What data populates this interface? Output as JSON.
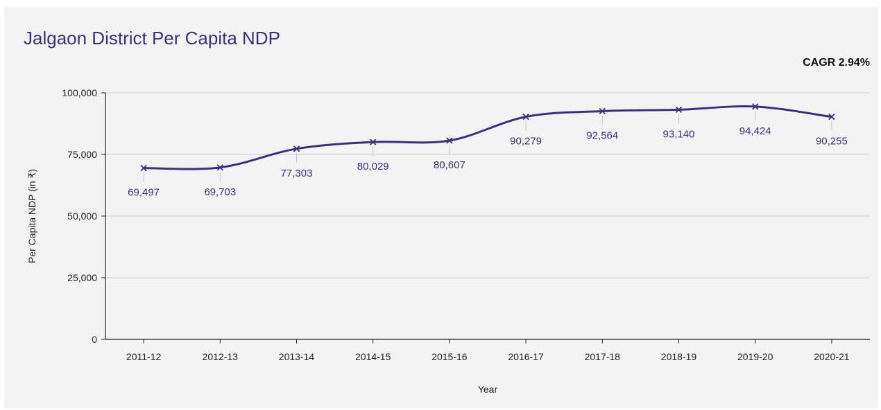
{
  "header": {
    "title": "Jalgaon District Per Capita NDP",
    "cagr": "CAGR 2.94%"
  },
  "chart_data": {
    "type": "line",
    "title": "Jalgaon District Per Capita NDP",
    "xlabel": "Year",
    "ylabel": "Per Capita NDP (in ₹)",
    "ylim": [
      0,
      100000
    ],
    "yticks": [
      0,
      25000,
      50000,
      75000,
      100000
    ],
    "ytick_labels": [
      "0",
      "25,000",
      "50,000",
      "75,000",
      "100,000"
    ],
    "grid": true,
    "categories": [
      "2011-12",
      "2012-13",
      "2013-14",
      "2014-15",
      "2015-16",
      "2016-17",
      "2017-18",
      "2018-19",
      "2019-20",
      "2020-21"
    ],
    "series": [
      {
        "values": [
          69497,
          69703,
          77303,
          80029,
          80607,
          90279,
          92564,
          93140,
          94424,
          90255
        ],
        "labels": [
          "69,497",
          "69,703",
          "77,303",
          "80,029",
          "80,607",
          "90,279",
          "92,564",
          "93,140",
          "94,424",
          "90,255"
        ],
        "color": "#3d2f7e"
      }
    ],
    "annotation": "CAGR 2.94%"
  }
}
